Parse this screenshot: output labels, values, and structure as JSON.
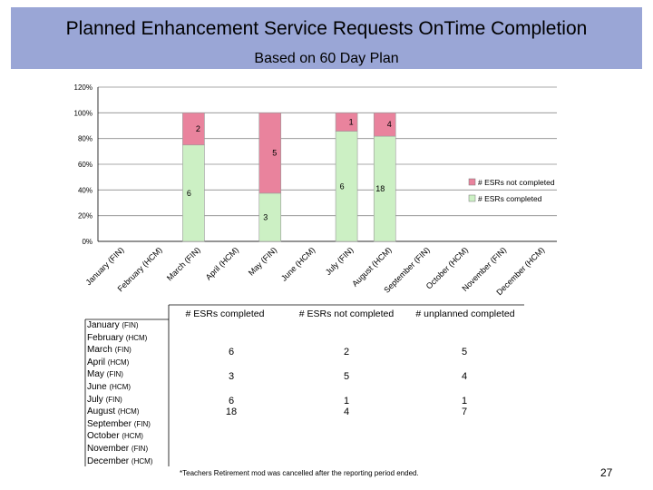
{
  "header": {
    "title": "Planned Enhancement Service Requests OnTime Completion",
    "subtitle": "Based on 60 Day Plan"
  },
  "colors": {
    "title_band": "#9aa6d6",
    "completed": "#ccf0c4",
    "not_completed": "#e9839d",
    "plot_bg": "#ffffff",
    "grid": "#8c8c8c"
  },
  "chart_data": {
    "type": "bar",
    "stacked": true,
    "percent": true,
    "categories": [
      "January (FIN)",
      "February (HCM)",
      "March (FIN)",
      "April (HCM)",
      "May (FIN)",
      "June (HCM)",
      "July (FIN)",
      "August (HCM)",
      "September (FIN)",
      "October (HCM)",
      "November (FIN)",
      "December (HCM)"
    ],
    "series": [
      {
        "name": "# ESRs completed",
        "values": [
          null,
          null,
          6,
          null,
          3,
          null,
          6,
          18,
          null,
          null,
          null,
          null
        ]
      },
      {
        "name": "# ESRs not completed",
        "values": [
          null,
          null,
          2,
          null,
          5,
          null,
          1,
          4,
          null,
          null,
          null,
          null
        ]
      }
    ],
    "y_ticks": [
      "0%",
      "20%",
      "40%",
      "60%",
      "80%",
      "100%",
      "120%"
    ],
    "ylim": [
      0,
      120
    ],
    "legend_position": "right",
    "grid": true
  },
  "table": {
    "headers": [
      "# ESRs completed",
      "# ESRs not completed",
      "# unplanned completed"
    ],
    "months": [
      {
        "name": "January",
        "sys": "FIN"
      },
      {
        "name": "February",
        "sys": "HCM"
      },
      {
        "name": "March",
        "sys": "FIN"
      },
      {
        "name": "April",
        "sys": "HCM"
      },
      {
        "name": "May",
        "sys": "FIN"
      },
      {
        "name": "June",
        "sys": "HCM"
      },
      {
        "name": "July",
        "sys": "FIN"
      },
      {
        "name": "August",
        "sys": "HCM"
      },
      {
        "name": "September",
        "sys": "FIN"
      },
      {
        "name": "October",
        "sys": "HCM"
      },
      {
        "name": "November",
        "sys": "FIN"
      },
      {
        "name": "December",
        "sys": "HCM"
      }
    ],
    "rows": [
      {
        "completed": "6",
        "not_completed": "2",
        "unplanned": "5"
      },
      {
        "completed": "3",
        "not_completed": "5",
        "unplanned": "4"
      },
      {
        "completed": "6\n18",
        "not_completed": "1\n4",
        "unplanned": "1\n7"
      }
    ]
  },
  "footnote": "*Teachers Retirement mod was cancelled after the reporting period ended.",
  "page_number": "27"
}
